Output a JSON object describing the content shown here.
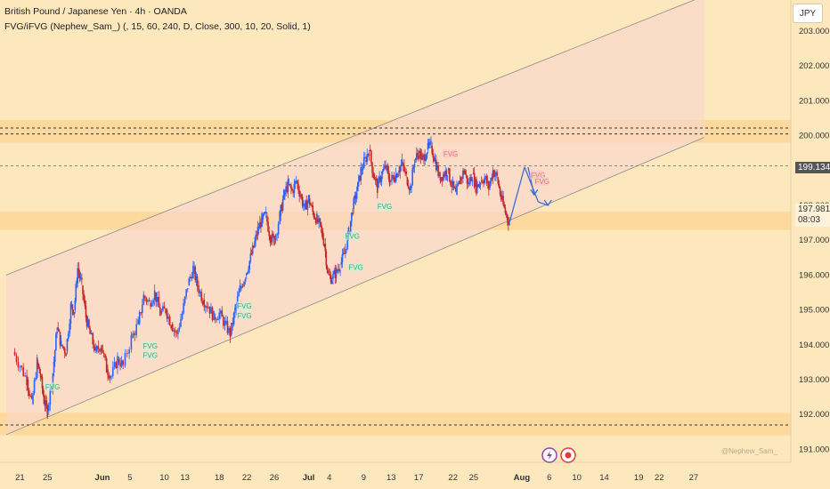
{
  "header": {
    "title": "British Pound / Japanese Yen · 4h · OANDA",
    "indicator": "FVG/iFVG (Nephew_Sam_) (, 15, 60, 240, D, Close, 300, 10, 20, Solid, 1)"
  },
  "currency_button": "JPY",
  "price_tags": {
    "current": "199.134",
    "last": "197.981",
    "countdown": "08:03"
  },
  "watermark": "@Nephew_Sam_",
  "colors": {
    "background": "#fde7bd",
    "up": "#2962ff",
    "down": "#c62828",
    "fvg": "#2bb673",
    "fvg_bear": "#e57373",
    "arrow": "#3b6fd8",
    "zone": "#fdd79a"
  },
  "icons": [
    "lightning-icon",
    "record-icon"
  ],
  "chart_data": {
    "type": "candlestick",
    "title": "British Pound / Japanese Yen · 4h · OANDA",
    "xlabel": "",
    "ylabel": "",
    "ylim": [
      190.9,
      203.8
    ],
    "y_ticks": [
      "203.000",
      "202.000",
      "201.000",
      "200.000",
      "199.000",
      "198.000",
      "197.000",
      "196.000",
      "195.000",
      "194.000",
      "193.000",
      "192.000",
      "191.000"
    ],
    "x_ticks": [
      "21",
      "25",
      "Jun",
      "5",
      "10",
      "13",
      "18",
      "22",
      "26",
      "Jul",
      "4",
      "9",
      "13",
      "17",
      "22",
      "25",
      "Aug",
      "6",
      "10",
      "14",
      "19",
      "22",
      "27"
    ],
    "x_tick_days": [
      -11,
      -7,
      1,
      5,
      10,
      13,
      18,
      22,
      26,
      31,
      34,
      39,
      43,
      47,
      52,
      55,
      62,
      66,
      70,
      74,
      79,
      82,
      87
    ],
    "dates": "days from Jun 1 (x_tick_days mapping)",
    "series": [
      {
        "values_open": [],
        "values_close": []
      }
    ],
    "price_path": [
      [
        -12,
        193.8
      ],
      [
        -11,
        193.4
      ],
      [
        -10,
        193.0
      ],
      [
        -9.3,
        192.3
      ],
      [
        -8.5,
        193.5
      ],
      [
        -8,
        193.1
      ],
      [
        -7.5,
        192.4
      ],
      [
        -7,
        192.1
      ],
      [
        -6.2,
        193.2
      ],
      [
        -5.6,
        194.5
      ],
      [
        -5,
        194.0
      ],
      [
        -4.3,
        193.8
      ],
      [
        -3.6,
        195.1
      ],
      [
        -3.1,
        195.0
      ],
      [
        -2.6,
        196.2
      ],
      [
        -2,
        195.7
      ],
      [
        -1.4,
        194.8
      ],
      [
        -0.8,
        194.3
      ],
      [
        0,
        193.8
      ],
      [
        0.8,
        194.0
      ],
      [
        1.6,
        193.3
      ],
      [
        2.3,
        193.1
      ],
      [
        3.2,
        193.6
      ],
      [
        4,
        193.4
      ],
      [
        5.2,
        194.2
      ],
      [
        6.2,
        194.6
      ],
      [
        7,
        195.4
      ],
      [
        7.8,
        195.2
      ],
      [
        8.6,
        195.5
      ],
      [
        9.4,
        194.9
      ],
      [
        10.2,
        195.0
      ],
      [
        11,
        194.6
      ],
      [
        11.8,
        194.3
      ],
      [
        12.6,
        194.9
      ],
      [
        13.4,
        195.7
      ],
      [
        14.2,
        196.2
      ],
      [
        14.8,
        195.7
      ],
      [
        15.6,
        195.3
      ],
      [
        16.4,
        195.1
      ],
      [
        17.2,
        194.8
      ],
      [
        18,
        194.9
      ],
      [
        18.8,
        194.6
      ],
      [
        19.6,
        194.3
      ],
      [
        20.3,
        195.0
      ],
      [
        21,
        195.6
      ],
      [
        21.8,
        196.0
      ],
      [
        22.4,
        196.4
      ],
      [
        23,
        196.8
      ],
      [
        23.6,
        197.3
      ],
      [
        24.2,
        197.6
      ],
      [
        24.8,
        197.7
      ],
      [
        25.4,
        197.1
      ],
      [
        26,
        197.0
      ],
      [
        26.8,
        197.7
      ],
      [
        27.4,
        198.3
      ],
      [
        28,
        198.6
      ],
      [
        28.6,
        198.4
      ],
      [
        29.2,
        198.7
      ],
      [
        29.8,
        198.3
      ],
      [
        30.4,
        197.9
      ],
      [
        31,
        198.2
      ],
      [
        31.6,
        197.8
      ],
      [
        32.2,
        197.6
      ],
      [
        32.8,
        197.3
      ],
      [
        33.3,
        196.9
      ],
      [
        33.8,
        196.0
      ],
      [
        34.4,
        195.9
      ],
      [
        35,
        196.1
      ],
      [
        35.6,
        196.3
      ],
      [
        36.2,
        196.6
      ],
      [
        36.8,
        197.2
      ],
      [
        37.4,
        197.9
      ],
      [
        38,
        198.4
      ],
      [
        38.6,
        199.0
      ],
      [
        39.2,
        199.3
      ],
      [
        39.8,
        199.6
      ],
      [
        40.4,
        198.9
      ],
      [
        41,
        198.5
      ],
      [
        41.6,
        198.9
      ],
      [
        42.2,
        199.1
      ],
      [
        42.8,
        198.7
      ],
      [
        43.4,
        198.8
      ],
      [
        44,
        199.0
      ],
      [
        44.6,
        199.2
      ],
      [
        45.2,
        198.8
      ],
      [
        45.8,
        198.5
      ],
      [
        46.4,
        199.3
      ],
      [
        47,
        199.5
      ],
      [
        47.6,
        199.3
      ],
      [
        48.2,
        199.6
      ],
      [
        48.8,
        199.7
      ],
      [
        49.4,
        199.3
      ],
      [
        50,
        198.8
      ],
      [
        50.6,
        198.9
      ],
      [
        51.2,
        199.0
      ],
      [
        51.8,
        198.6
      ],
      [
        52.4,
        198.3
      ],
      [
        53,
        198.7
      ],
      [
        53.6,
        199.0
      ],
      [
        54.2,
        198.6
      ],
      [
        54.8,
        198.9
      ],
      [
        55.4,
        198.5
      ],
      [
        56,
        198.7
      ],
      [
        56.6,
        198.8
      ],
      [
        57.2,
        198.5
      ],
      [
        57.8,
        199.0
      ],
      [
        58.4,
        198.8
      ],
      [
        59,
        198.2
      ],
      [
        59.6,
        197.8
      ],
      [
        60.2,
        197.5
      ]
    ],
    "fvg_labels": [
      {
        "text": "FVG",
        "day": -7.3,
        "price": 192.75
      },
      {
        "text": "FVG",
        "day": 6.9,
        "price": 193.92
      },
      {
        "text": "FVG",
        "day": 6.9,
        "price": 193.65
      },
      {
        "text": "FVG",
        "day": 20.6,
        "price": 195.06
      },
      {
        "text": "FVG",
        "day": 20.6,
        "price": 194.78
      },
      {
        "text": "FVG",
        "day": 36.3,
        "price": 197.07
      },
      {
        "text": "FVG",
        "day": 36.8,
        "price": 196.17
      },
      {
        "text": "FVG",
        "day": 41.0,
        "price": 197.92
      }
    ],
    "fvg_bear_labels": [
      {
        "text": "FVG",
        "day": 50.6,
        "price": 199.43
      },
      {
        "text": "FVG",
        "day": 63.3,
        "price": 198.82
      },
      {
        "text": "FVG",
        "day": 63.9,
        "price": 198.64
      }
    ],
    "zones": [
      {
        "name": "resistance",
        "y": [
          199.8,
          200.45
        ]
      },
      {
        "name": "support",
        "y": [
          197.3,
          197.82
        ]
      },
      {
        "name": "bottom",
        "y": [
          191.4,
          192.05
        ]
      }
    ],
    "channel": {
      "upper": [
        [
          -13.0,
          196.0
        ],
        [
          85.9,
          203.8
        ]
      ],
      "lower": [
        [
          -13.0,
          191.42
        ],
        [
          78.8,
          199.134
        ]
      ]
    },
    "hlines": [
      200.22,
      200.05,
      199.134,
      191.7
    ],
    "projection": [
      [
        60.2,
        197.5
      ],
      [
        62.4,
        199.1
      ],
      [
        64.4,
        198.1
      ],
      [
        65.8,
        198.0
      ]
    ]
  }
}
